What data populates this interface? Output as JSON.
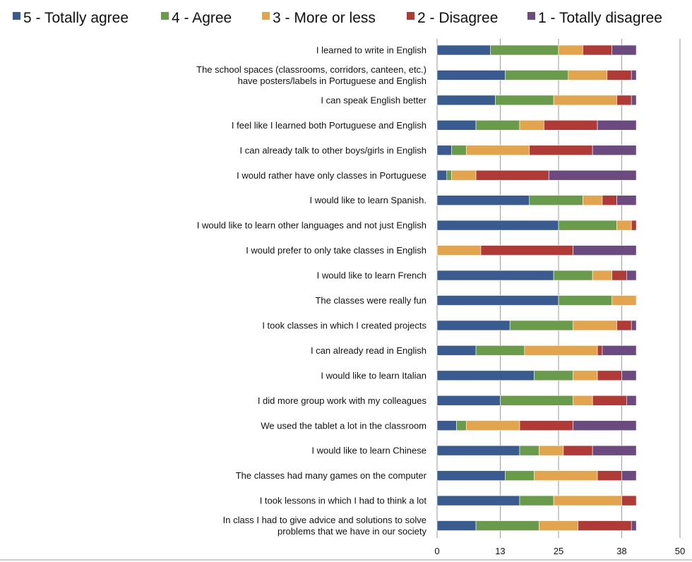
{
  "chart_data": {
    "type": "bar",
    "orientation": "horizontal",
    "stacked": true,
    "title": "",
    "xlabel": "",
    "ylabel": "",
    "xlim": [
      0,
      50
    ],
    "x_ticks": [
      0,
      13,
      25,
      38,
      50
    ],
    "grid": "vertical",
    "legend_position": "top",
    "categories": [
      "I learned to write in English",
      "The school spaces (classrooms, corridors, canteen, etc.) have posters/labels in Portuguese and English",
      "I can speak English better",
      "I feel like I learned both Portuguese and English",
      "I can already talk to other boys/girls in English",
      "I would rather have only classes in Portuguese",
      "I would like to learn Spanish.",
      "I would like to learn other languages  and not just English",
      "I would prefer to only take classes in English",
      "I would like to learn French",
      "The classes were really fun",
      "I took classes in which I created projects",
      "I can already read in English",
      "I would like to learn Italian",
      "I did more group work with my colleagues",
      "We used the tablet a lot in the classroom",
      "I would like to learn Chinese",
      "The classes had many games on the computer",
      "I took lessons in which I had to think a lot",
      "In class I had to give advice and solutions to solve problems that we have in our society"
    ],
    "series": [
      {
        "name": "5 - Totally agree",
        "color": "#3a5b8f",
        "values": [
          11,
          14,
          12,
          8,
          3,
          2,
          19,
          25,
          0,
          24,
          25,
          15,
          8,
          20,
          13,
          4,
          17,
          14,
          17,
          8
        ]
      },
      {
        "name": "4 - Agree",
        "color": "#6a9b4a",
        "values": [
          14,
          13,
          12,
          9,
          3,
          1,
          11,
          12,
          0,
          8,
          11,
          13,
          10,
          8,
          15,
          2,
          4,
          6,
          7,
          13
        ]
      },
      {
        "name": "3 - More or less",
        "color": "#e2a54e",
        "values": [
          5,
          8,
          13,
          5,
          13,
          5,
          4,
          3,
          9,
          4,
          5,
          9,
          15,
          5,
          4,
          11,
          5,
          13,
          14,
          8
        ]
      },
      {
        "name": "2 - Disagree",
        "color": "#b03a36",
        "values": [
          6,
          5,
          3,
          11,
          13,
          15,
          3,
          1,
          19,
          3,
          0,
          3,
          1,
          5,
          7,
          11,
          6,
          5,
          3,
          11
        ]
      },
      {
        "name": "1 - Totally disagree",
        "color": "#6b4a80",
        "values": [
          5,
          1,
          1,
          8,
          9,
          18,
          4,
          0,
          13,
          2,
          0,
          1,
          7,
          3,
          2,
          13,
          9,
          3,
          0,
          1
        ]
      }
    ]
  }
}
